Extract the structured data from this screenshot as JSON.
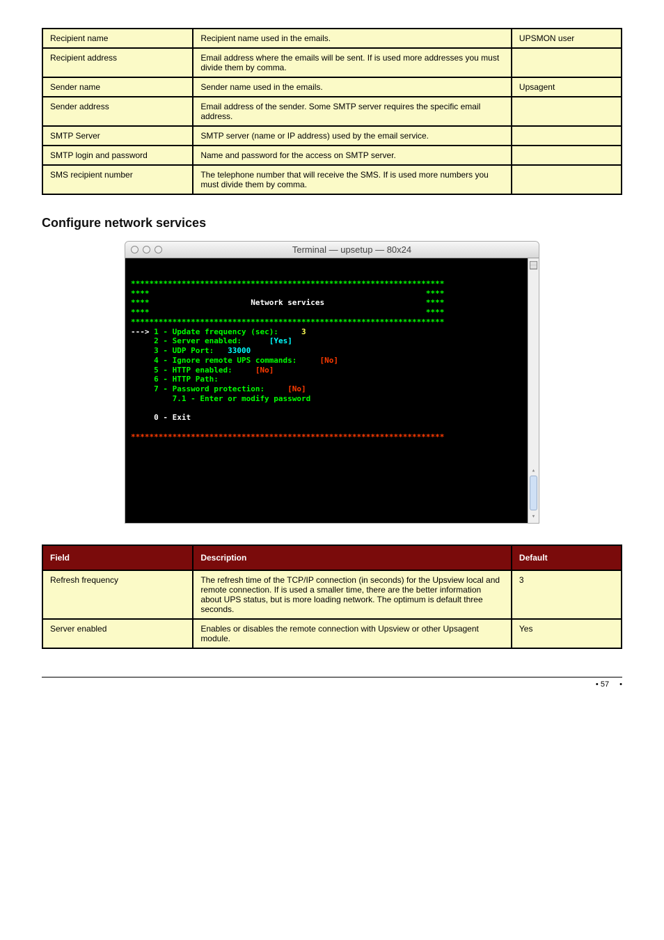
{
  "colors": {
    "table_bg": "#fbfac7",
    "header_bg": "#7a0b0b",
    "header_text": "#ffffff",
    "border": "#000000",
    "term_bg": "#000000",
    "term_green": "#00ff00",
    "term_white": "#ffffff",
    "term_red": "#ff3a00",
    "term_yellow": "#ffff55",
    "term_cyan": "#00ffff"
  },
  "table1": {
    "columns": {
      "c1": "",
      "c2": "",
      "c3": ""
    },
    "rows": [
      {
        "field": "Recipient name",
        "desc": "Recipient name used in the emails.",
        "def": "UPSMON user"
      },
      {
        "field": "Recipient address",
        "desc": "Email address where the emails will be sent. If is used more addresses you must divide them by comma.",
        "def": ""
      },
      {
        "field": "Sender name",
        "desc": "Sender name used in the emails.",
        "def": "Upsagent"
      },
      {
        "field": "Sender address",
        "desc": "Email address of the sender. Some SMTP server requires the specific email address.",
        "def": ""
      },
      {
        "field": "SMTP Server",
        "desc": "SMTP server (name or IP address) used by the email service.",
        "def": ""
      },
      {
        "field": "SMTP login and password",
        "desc": "Name and password for the access on SMTP server.",
        "def": ""
      },
      {
        "field": "SMS recipient number",
        "desc": "The telephone number that will receive the SMS. If is used more numbers you must divide them by comma.",
        "def": ""
      }
    ]
  },
  "section_heading": "Configure network services",
  "terminal": {
    "title": "Terminal — upsetup — 80x24",
    "banner_row_stars": "********************************************************************",
    "banner_side": "****",
    "banner_title": "Network services",
    "menu": {
      "arrow": "---> ",
      "1": {
        "label": "1 - Update frequency (sec):",
        "value": "3"
      },
      "2": {
        "label": "2 - Server enabled:",
        "value": "[Yes]"
      },
      "3": {
        "label": "3 - UDP Port:",
        "value": "33000"
      },
      "4": {
        "label": "4 - Ignore remote UPS commands:",
        "value": "[No]"
      },
      "5": {
        "label": "5 - HTTP enabled:",
        "value": "[No]"
      },
      "6": {
        "label": "6 - HTTP Path:"
      },
      "7": {
        "label": "7 - Password protection:",
        "value": "[No]"
      },
      "7_1": {
        "label": "7.1 - Enter or modify password"
      },
      "exit": "0 - Exit"
    }
  },
  "table2": {
    "columns": {
      "c1": "Field",
      "c2": "Description",
      "c3": "Default"
    },
    "rows": [
      {
        "field": "Refresh frequency",
        "desc": "The refresh time of the TCP/IP connection (in seconds) for the Upsview local and remote connection. If is used a smaller time, there are the better information about UPS status, but is more loading network. The optimum is default three seconds.",
        "def": "3"
      },
      {
        "field": "Server enabled",
        "desc": "Enables or disables the remote connection with Upsview or other Upsagent module.",
        "def": "Yes"
      }
    ]
  },
  "footer": {
    "page": "57"
  }
}
